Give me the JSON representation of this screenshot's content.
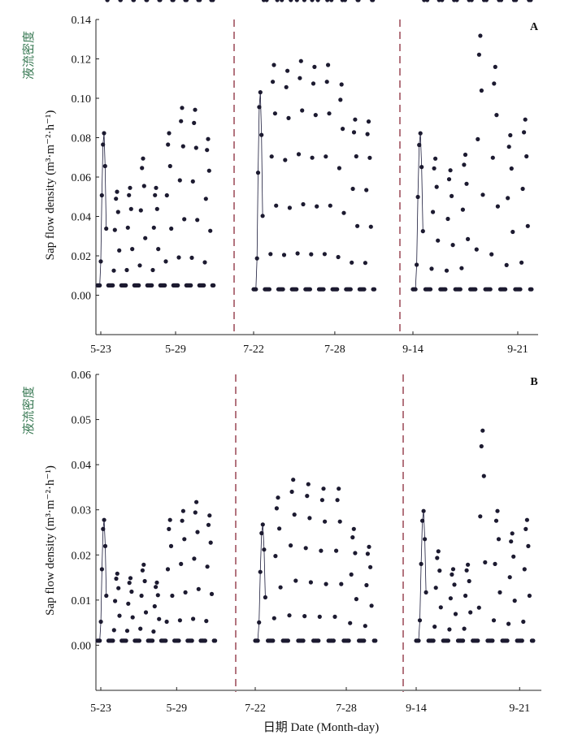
{
  "x_axis_title": "日期 Date (Month-day)",
  "colors": {
    "points": "#1c1a30",
    "line": "#1a1a3a",
    "divider": "#8a2a3a",
    "cn_label": "#3a7a55"
  },
  "chart_data": [
    {
      "type": "line",
      "panel": "A",
      "ylabel_cn": "液流密度",
      "ylabel_en": "Sap flow density (m³·m⁻²·h⁻¹)",
      "ylim": [
        -0.02,
        0.14
      ],
      "yticks": [
        "0.00",
        "0.02",
        "0.04",
        "0.06",
        "0.08",
        "0.10",
        "0.12",
        "0.14"
      ],
      "segments": [
        {
          "x_ticks": [
            "5-23",
            "5-29"
          ],
          "x_tick_days": [
            0,
            6
          ],
          "days": 10,
          "daily_peaks": [
            0.083,
            0.053,
            0.055,
            0.07,
            0.055,
            0.083,
            0.096,
            0.095,
            0.08
          ],
          "night_min": 0.005
        },
        {
          "x_ticks": [
            "7-22",
            "7-28"
          ],
          "x_tick_days": [
            0,
            6
          ],
          "days": 10,
          "daily_peaks": [
            0.104,
            0.118,
            0.115,
            0.12,
            0.117,
            0.118,
            0.108,
            0.09,
            0.089
          ],
          "night_min": 0.003
        },
        {
          "x_ticks": [
            "9-14",
            "9-21"
          ],
          "x_tick_days": [
            0,
            7
          ],
          "days": 10,
          "daily_peaks": [
            0.083,
            0.07,
            0.064,
            0.072,
            0.133,
            0.117,
            0.082,
            0.09
          ],
          "night_min": 0.003
        }
      ]
    },
    {
      "type": "line",
      "panel": "B",
      "ylabel_cn": "液流密度",
      "ylabel_en": "Sap flow density (m³·m⁻²·h⁻¹)",
      "ylim": [
        -0.01,
        0.06
      ],
      "yticks": [
        "0.00",
        "0.01",
        "0.02",
        "0.03",
        "0.04",
        "0.05",
        "0.06"
      ],
      "segments": [
        {
          "x_ticks": [
            "5-23",
            "5-29"
          ],
          "x_tick_days": [
            0,
            6
          ],
          "days": 10,
          "daily_peaks": [
            0.028,
            0.016,
            0.015,
            0.018,
            0.014,
            0.028,
            0.03,
            0.032,
            0.029
          ],
          "night_min": 0.001
        },
        {
          "x_ticks": [
            "7-22",
            "7-28"
          ],
          "x_tick_days": [
            0,
            6
          ],
          "days": 10,
          "daily_peaks": [
            0.027,
            0.033,
            0.037,
            0.036,
            0.035,
            0.035,
            0.026,
            0.022
          ],
          "night_min": 0.001
        },
        {
          "x_ticks": [
            "9-14",
            "9-21"
          ],
          "x_tick_days": [
            0,
            7
          ],
          "days": 10,
          "daily_peaks": [
            0.03,
            0.021,
            0.017,
            0.018,
            0.048,
            0.03,
            0.025,
            0.028
          ],
          "night_min": 0.001
        }
      ]
    }
  ]
}
